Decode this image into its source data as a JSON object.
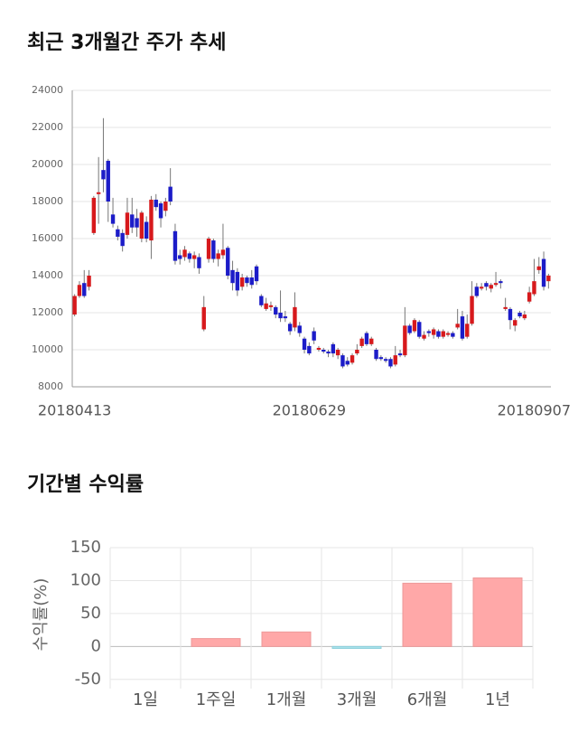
{
  "chart_data": [
    {
      "type": "candlestick",
      "title": "최근 3개월간 주가 추세",
      "categories": [
        "20180413",
        null,
        null,
        null,
        null,
        null,
        null,
        null,
        null,
        null,
        null,
        null,
        null,
        null,
        null,
        null,
        null,
        null,
        null,
        null,
        null,
        null,
        null,
        null,
        null,
        null,
        null,
        null,
        null,
        null,
        null,
        null,
        null,
        null,
        null,
        null,
        null,
        null,
        null,
        null,
        null,
        null,
        null,
        null,
        null,
        null,
        null,
        null,
        null,
        "20180629",
        null,
        null,
        null,
        null,
        null,
        null,
        null,
        null,
        null,
        null,
        null,
        null,
        null,
        null,
        null,
        null,
        null,
        null,
        null,
        null,
        null,
        null,
        null,
        null,
        null,
        null,
        null,
        null,
        null,
        null,
        null,
        null,
        null,
        null,
        null,
        null,
        null,
        null,
        null,
        null,
        null,
        null,
        null,
        null,
        null,
        null,
        null,
        null,
        null,
        "20180907"
      ],
      "open": [
        11900,
        12900,
        13600,
        13400,
        16300,
        18400,
        19700,
        20200,
        17300,
        16500,
        16300,
        16200,
        17300,
        17100,
        16000,
        16900,
        15900,
        18100,
        17900,
        17500,
        18800,
        16400,
        15100,
        15000,
        15200,
        14900,
        15000,
        11100,
        14900,
        15900,
        14900,
        15100,
        15500,
        14300,
        14200,
        13400,
        13900,
        13900,
        14500,
        12900,
        12200,
        12300,
        12300,
        12000,
        11800,
        11400,
        11200,
        11300,
        10600,
        10200,
        11000,
        10000,
        10000,
        9900,
        10300,
        9700,
        9700,
        9400,
        9300,
        9800,
        10200,
        10900,
        10300,
        10000,
        9600,
        9500,
        9500,
        9200,
        9800,
        9700,
        11300,
        11000,
        11500,
        10600,
        11000,
        10800,
        11000,
        10700,
        10800,
        10900,
        11200,
        11800,
        10700,
        11400,
        13400,
        13300,
        13600,
        13300,
        13500,
        13700,
        12200,
        12200,
        11300,
        12000,
        11700,
        12600,
        13000,
        14300,
        14900,
        13700
      ],
      "high": [
        13000,
        13700,
        14300,
        14300,
        18300,
        20400,
        22500,
        20300,
        18200,
        16700,
        16500,
        18200,
        18200,
        17600,
        17500,
        17200,
        18300,
        18400,
        18000,
        18200,
        19800,
        16800,
        15400,
        15600,
        15300,
        15300,
        15200,
        12900,
        16100,
        16000,
        15400,
        16800,
        15600,
        14800,
        14400,
        14100,
        14000,
        14300,
        14600,
        13000,
        12800,
        12600,
        12400,
        13200,
        12100,
        11500,
        13100,
        11500,
        10700,
        10400,
        11200,
        10200,
        10100,
        10000,
        10400,
        10100,
        9800,
        9600,
        9800,
        10300,
        10700,
        11000,
        10700,
        10100,
        9700,
        9600,
        9600,
        10200,
        10000,
        12300,
        11400,
        11700,
        11600,
        11000,
        11100,
        11200,
        11100,
        11100,
        11000,
        11000,
        12200,
        12100,
        11900,
        13700,
        13600,
        13600,
        13700,
        13600,
        14200,
        13800,
        12800,
        12300,
        11700,
        12100,
        12100,
        13400,
        14900,
        15000,
        15300,
        14100
      ],
      "low": [
        11800,
        12800,
        12800,
        13200,
        16200,
        16800,
        18500,
        16900,
        16600,
        15900,
        15300,
        16000,
        16300,
        16100,
        15800,
        15800,
        14900,
        17500,
        16600,
        17200,
        17800,
        14600,
        14600,
        14800,
        14700,
        14400,
        14100,
        11000,
        14700,
        14700,
        14500,
        14900,
        13800,
        13200,
        12900,
        13200,
        13400,
        13300,
        13500,
        12300,
        12100,
        12100,
        11700,
        11500,
        11500,
        10800,
        11000,
        10700,
        9800,
        9700,
        10300,
        9900,
        9800,
        9600,
        9600,
        9500,
        9000,
        9100,
        9200,
        9700,
        10100,
        10200,
        10200,
        9400,
        9400,
        9300,
        9000,
        9100,
        9600,
        9600,
        10800,
        10900,
        10600,
        10500,
        10700,
        10600,
        10600,
        10600,
        10700,
        10600,
        11100,
        10500,
        10600,
        11300,
        12800,
        13200,
        13200,
        13100,
        13400,
        13300,
        12100,
        11100,
        11000,
        11700,
        11600,
        12500,
        12900,
        14100,
        13200,
        13300
      ],
      "close": [
        12900,
        13500,
        12900,
        14000,
        18200,
        18500,
        19200,
        18000,
        16800,
        16100,
        15600,
        17400,
        16600,
        16600,
        17400,
        16000,
        18100,
        17700,
        17100,
        18000,
        18000,
        14800,
        14900,
        15400,
        14900,
        15100,
        14400,
        12300,
        16000,
        14900,
        15200,
        15400,
        14000,
        13600,
        13200,
        13900,
        13600,
        13500,
        13700,
        12400,
        12500,
        12400,
        11900,
        11700,
        11700,
        11000,
        12300,
        10900,
        10000,
        9800,
        10500,
        10100,
        9900,
        9800,
        9800,
        10000,
        9100,
        9200,
        9700,
        10000,
        10600,
        10300,
        10600,
        9500,
        9500,
        9400,
        9100,
        9700,
        9700,
        11300,
        10900,
        11600,
        10700,
        10800,
        10900,
        11100,
        10700,
        11000,
        10900,
        10700,
        11400,
        10600,
        11400,
        12900,
        12900,
        13400,
        13400,
        13500,
        13600,
        13600,
        12300,
        11600,
        11600,
        11800,
        11900,
        13100,
        13700,
        14500,
        13400,
        14000
      ],
      "up_color": "#d7191c",
      "down_color": "#1c1cc8",
      "ylim": [
        8000,
        24000
      ],
      "yticks": [
        8000,
        10000,
        12000,
        14000,
        16000,
        18000,
        20000,
        22000,
        24000
      ],
      "grid": true
    },
    {
      "type": "bar",
      "title": "기간별 수익률",
      "ylabel": "수익률(%)",
      "categories": [
        "1일",
        "1주일",
        "1개월",
        "3개월",
        "6개월",
        "1년"
      ],
      "values": [
        0,
        12,
        22,
        -3,
        96,
        104
      ],
      "color": "#ffa8a8",
      "negative_color": "#a8e2ea",
      "ylim": [
        -64,
        150
      ],
      "yticks": [
        -50,
        0,
        50,
        100,
        150
      ],
      "grid": true
    }
  ]
}
